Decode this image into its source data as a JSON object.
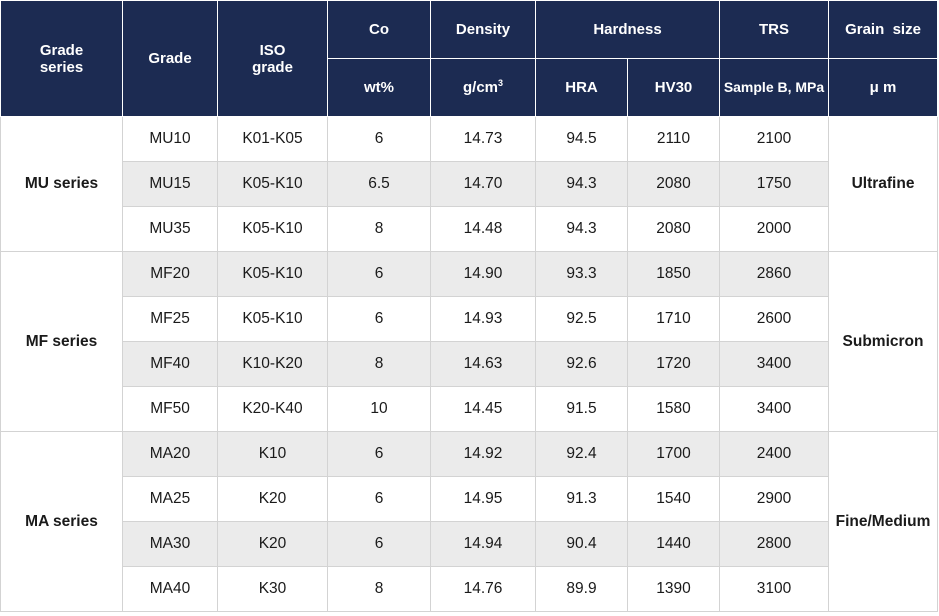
{
  "headers": {
    "grade_series": [
      "Grade",
      "series"
    ],
    "grade": "Grade",
    "iso_grade": [
      "ISO",
      "grade"
    ],
    "co": "Co",
    "density": "Density",
    "hardness": "Hardness",
    "trs": "TRS",
    "grain_size": "Grain  size",
    "co_unit": "wt%",
    "density_unit": "g/cm",
    "density_unit_sup": "3",
    "hra": "HRA",
    "hv30": "HV30",
    "trs_unit": "Sample B, MPa",
    "grain_unit": "μ m"
  },
  "groups": [
    {
      "series": "MU series",
      "grain": "Ultrafine",
      "rows": [
        {
          "grade": "MU10",
          "iso": "K01-K05",
          "co": "6",
          "density": "14.73",
          "hra": "94.5",
          "hv30": "2110",
          "trs": "2100"
        },
        {
          "grade": "MU15",
          "iso": "K05-K10",
          "co": "6.5",
          "density": "14.70",
          "hra": "94.3",
          "hv30": "2080",
          "trs": "1750"
        },
        {
          "grade": "MU35",
          "iso": "K05-K10",
          "co": "8",
          "density": "14.48",
          "hra": "94.3",
          "hv30": "2080",
          "trs": "2000"
        }
      ]
    },
    {
      "series": "MF series",
      "grain": "Submicron",
      "rows": [
        {
          "grade": "MF20",
          "iso": "K05-K10",
          "co": "6",
          "density": "14.90",
          "hra": "93.3",
          "hv30": "1850",
          "trs": "2860"
        },
        {
          "grade": "MF25",
          "iso": "K05-K10",
          "co": "6",
          "density": "14.93",
          "hra": "92.5",
          "hv30": "1710",
          "trs": "2600"
        },
        {
          "grade": "MF40",
          "iso": "K10-K20",
          "co": "8",
          "density": "14.63",
          "hra": "92.6",
          "hv30": "1720",
          "trs": "3400"
        },
        {
          "grade": "MF50",
          "iso": "K20-K40",
          "co": "10",
          "density": "14.45",
          "hra": "91.5",
          "hv30": "1580",
          "trs": "3400"
        }
      ]
    },
    {
      "series": "MA series",
      "grain": "Fine/Medium",
      "rows": [
        {
          "grade": "MA20",
          "iso": "K10",
          "co": "6",
          "density": "14.92",
          "hra": "92.4",
          "hv30": "1700",
          "trs": "2400"
        },
        {
          "grade": "MA25",
          "iso": "K20",
          "co": "6",
          "density": "14.95",
          "hra": "91.3",
          "hv30": "1540",
          "trs": "2900"
        },
        {
          "grade": "MA30",
          "iso": "K20",
          "co": "6",
          "density": "14.94",
          "hra": "90.4",
          "hv30": "1440",
          "trs": "2800"
        },
        {
          "grade": "MA40",
          "iso": "K30",
          "co": "8",
          "density": "14.76",
          "hra": "89.9",
          "hv30": "1390",
          "trs": "3100"
        }
      ]
    }
  ]
}
